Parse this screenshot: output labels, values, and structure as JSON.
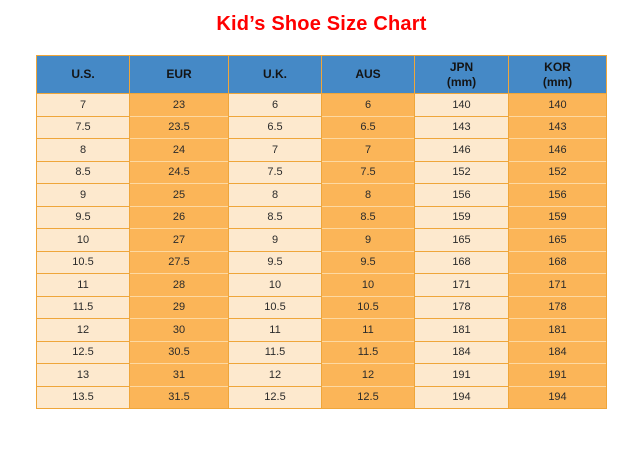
{
  "page": {
    "title": "Kid’s Shoe Size Chart"
  },
  "colors": {
    "title_color": "#FF0000",
    "header_bg": "#4589C6",
    "header_text": "#141414",
    "cell_text": "#2B2B2B",
    "col_light_bg": "#FDE9CE",
    "col_dark_bg": "#FBB558",
    "grid_orange": "#EFA63A",
    "grid_light": "#FDD9A2"
  },
  "table": {
    "headers": [
      {
        "lines": [
          "U.S."
        ]
      },
      {
        "lines": [
          "EUR"
        ]
      },
      {
        "lines": [
          "U.K."
        ]
      },
      {
        "lines": [
          "AUS"
        ]
      },
      {
        "lines": [
          "JPN",
          "(mm)"
        ]
      },
      {
        "lines": [
          "KOR",
          "(mm)"
        ]
      }
    ],
    "rows": [
      [
        "7",
        "23",
        "6",
        "6",
        "140",
        "140"
      ],
      [
        "7.5",
        "23.5",
        "6.5",
        "6.5",
        "143",
        "143"
      ],
      [
        "8",
        "24",
        "7",
        "7",
        "146",
        "146"
      ],
      [
        "8.5",
        "24.5",
        "7.5",
        "7.5",
        "152",
        "152"
      ],
      [
        "9",
        "25",
        "8",
        "8",
        "156",
        "156"
      ],
      [
        "9.5",
        "26",
        "8.5",
        "8.5",
        "159",
        "159"
      ],
      [
        "10",
        "27",
        "9",
        "9",
        "165",
        "165"
      ],
      [
        "10.5",
        "27.5",
        "9.5",
        "9.5",
        "168",
        "168"
      ],
      [
        "11",
        "28",
        "10",
        "10",
        "171",
        "171"
      ],
      [
        "11.5",
        "29",
        "10.5",
        "10.5",
        "178",
        "178"
      ],
      [
        "12",
        "30",
        "11",
        "11",
        "181",
        "181"
      ],
      [
        "12.5",
        "30.5",
        "11.5",
        "11.5",
        "184",
        "184"
      ],
      [
        "13",
        "31",
        "12",
        "12",
        "191",
        "191"
      ],
      [
        "13.5",
        "31.5",
        "12.5",
        "12.5",
        "194",
        "194"
      ]
    ]
  },
  "chart_data": {
    "type": "table",
    "title": "Kid’s Shoe Size Chart",
    "columns": [
      "U.S.",
      "EUR",
      "U.K.",
      "AUS",
      "JPN (mm)",
      "KOR (mm)"
    ],
    "rows": [
      [
        "7",
        "23",
        "6",
        "6",
        "140",
        "140"
      ],
      [
        "7.5",
        "23.5",
        "6.5",
        "6.5",
        "143",
        "143"
      ],
      [
        "8",
        "24",
        "7",
        "7",
        "146",
        "146"
      ],
      [
        "8.5",
        "24.5",
        "7.5",
        "7.5",
        "152",
        "152"
      ],
      [
        "9",
        "25",
        "8",
        "8",
        "156",
        "156"
      ],
      [
        "9.5",
        "26",
        "8.5",
        "8.5",
        "159",
        "159"
      ],
      [
        "10",
        "27",
        "9",
        "9",
        "165",
        "165"
      ],
      [
        "10.5",
        "27.5",
        "9.5",
        "9.5",
        "168",
        "168"
      ],
      [
        "11",
        "28",
        "10",
        "10",
        "171",
        "171"
      ],
      [
        "11.5",
        "29",
        "10.5",
        "10.5",
        "178",
        "178"
      ],
      [
        "12",
        "30",
        "11",
        "11",
        "181",
        "181"
      ],
      [
        "12.5",
        "30.5",
        "11.5",
        "11.5",
        "184",
        "184"
      ],
      [
        "13",
        "31",
        "12",
        "12",
        "191",
        "191"
      ],
      [
        "13.5",
        "31.5",
        "12.5",
        "12.5",
        "194",
        "194"
      ]
    ]
  }
}
